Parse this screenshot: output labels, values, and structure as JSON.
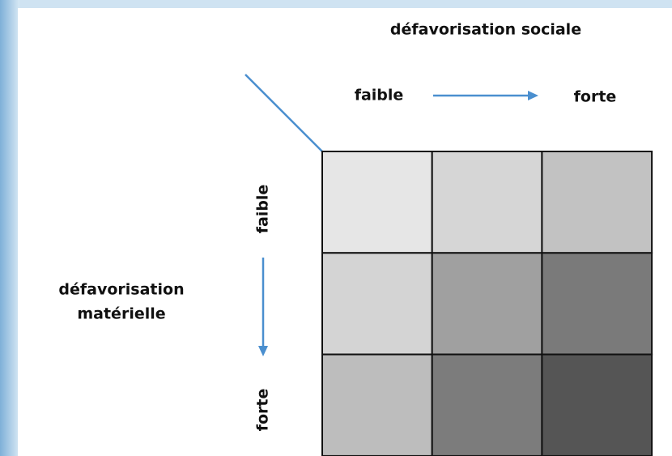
{
  "column_axis": {
    "title": "défavorisation sociale",
    "low": "faible",
    "high": "forte"
  },
  "row_axis": {
    "title_lines": [
      "défavorisation",
      "matérielle"
    ],
    "low": "faible",
    "high": "forte"
  },
  "grid": {
    "colors": [
      [
        "#e6e6e6",
        "#d6d6d6",
        "#c2c2c2"
      ],
      [
        "#d4d4d4",
        "#a0a0a0",
        "#7a7a7a"
      ],
      [
        "#bdbdbd",
        "#7c7c7c",
        "#555555"
      ]
    ]
  }
}
